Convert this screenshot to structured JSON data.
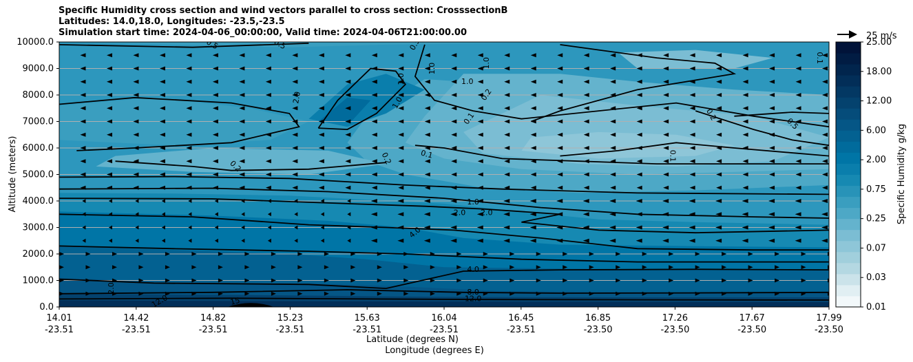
{
  "chart_data": {
    "type": "contour",
    "title_lines": [
      "Specific Humidity cross section and wind vectors parallel to cross section: CrosssectionB",
      "Latitudes: 14.0,18.0, Longitudes: -23.5,-23.5",
      "Simulation start time: 2024-04-06_00:00:00, Valid time: 2024-04-06T21:00:00.00"
    ],
    "xlabel_lat": "Latitude (degrees N)",
    "xlabel_lon": "Longitude (degrees E)",
    "ylabel": "Altitude (meters)",
    "ylim": [
      0,
      10000
    ],
    "yticks": [
      "0.0",
      "1000.0",
      "2000.0",
      "3000.0",
      "4000.0",
      "5000.0",
      "6000.0",
      "7000.0",
      "8000.0",
      "9000.0",
      "10000.0"
    ],
    "xticks_lat": [
      "14.01",
      "14.42",
      "14.82",
      "15.23",
      "15.63",
      "16.04",
      "16.45",
      "16.85",
      "17.26",
      "17.67",
      "17.99"
    ],
    "xticks_lon": [
      "-23.51",
      "-23.51",
      "-23.51",
      "-23.51",
      "-23.51",
      "-23.51",
      "-23.51",
      "-23.50",
      "-23.50",
      "-23.50",
      "-23.50"
    ],
    "colorbar": {
      "label": "Specific Humidity g/kg",
      "levels": [
        0.01,
        0.02,
        0.03,
        0.05,
        0.07,
        0.1,
        0.15,
        0.25,
        0.4,
        0.5,
        0.75,
        1.0,
        1.5,
        2.0,
        3.0,
        4.0,
        6.0,
        8.0,
        10.0,
        12.0,
        15.0,
        18.0,
        20.0,
        25.0
      ],
      "tick_labels": [
        "0.01",
        "0.03",
        "0.07",
        "0.25",
        "0.75",
        "2.00",
        "6.00",
        "12.00",
        "18.00",
        "25.00"
      ],
      "colors": [
        "#f2f8fa",
        "#e1eff3",
        "#cbe3ea",
        "#b4d8e2",
        "#a1cfdc",
        "#8ec6d8",
        "#7bbdd3",
        "#64b3cd",
        "#4da8c6",
        "#3a9ebf",
        "#2893b8",
        "#1689b2",
        "#0a7eac",
        "#0075a6",
        "#016b9c",
        "#036191",
        "#055686",
        "#054c7a",
        "#04426e",
        "#033863",
        "#022e58",
        "#01254d",
        "#011c43",
        "#011339"
      ]
    },
    "quiver_key": "25 m/s",
    "contour_labels": [
      {
        "text": "0.1",
        "lat": 17.94,
        "alt": 9400,
        "rot": 90
      },
      {
        "text": "0.2",
        "lat": 17.38,
        "alt": 7250,
        "rot": 60
      },
      {
        "text": "0.5",
        "lat": 17.8,
        "alt": 6900,
        "rot": 45
      },
      {
        "text": "0.1",
        "lat": 17.18,
        "alt": 5700,
        "rot": 90
      },
      {
        "text": "0.2",
        "lat": 16.22,
        "alt": 8000,
        "rot": -55
      },
      {
        "text": "0.1",
        "lat": 16.13,
        "alt": 7100,
        "rot": -55
      },
      {
        "text": "0.1",
        "lat": 15.91,
        "alt": 5750,
        "rot": 15
      },
      {
        "text": "0.2",
        "lat": 15.7,
        "alt": 5600,
        "rot": 65
      },
      {
        "text": "0.2",
        "lat": 14.92,
        "alt": 5300,
        "rot": 45
      },
      {
        "text": "1.0",
        "lat": 15.78,
        "alt": 8600,
        "rot": -90
      },
      {
        "text": "1.0",
        "lat": 15.94,
        "alt": 9000,
        "rot": -90
      },
      {
        "text": "1.0",
        "lat": 16.22,
        "alt": 9200,
        "rot": -90
      },
      {
        "text": "1.0",
        "lat": 16.12,
        "alt": 8500,
        "rot": 0
      },
      {
        "text": "1.0",
        "lat": 15.76,
        "alt": 7700,
        "rot": -60
      },
      {
        "text": "2.0",
        "lat": 15.24,
        "alt": 7900,
        "rot": -80
      },
      {
        "text": "0.5",
        "lat": 14.8,
        "alt": 9900,
        "rot": 30
      },
      {
        "text": "0.5",
        "lat": 15.15,
        "alt": 9900,
        "rot": 30
      },
      {
        "text": "0.5",
        "lat": 15.85,
        "alt": 9900,
        "rot": -60
      },
      {
        "text": "1.0",
        "lat": 16.15,
        "alt": 3950,
        "rot": 0
      },
      {
        "text": "2.0",
        "lat": 16.08,
        "alt": 3550,
        "rot": 0
      },
      {
        "text": "2.0",
        "lat": 16.22,
        "alt": 3550,
        "rot": 0
      },
      {
        "text": "4.0",
        "lat": 15.85,
        "alt": 2800,
        "rot": -40
      },
      {
        "text": "4.0",
        "lat": 16.15,
        "alt": 1400,
        "rot": 0
      },
      {
        "text": "8.0",
        "lat": 16.15,
        "alt": 550,
        "rot": 0
      },
      {
        "text": "12.0",
        "lat": 16.15,
        "alt": 300,
        "rot": 0
      },
      {
        "text": "2.0",
        "lat": 14.28,
        "alt": 700,
        "rot": -90
      },
      {
        "text": "12.0",
        "lat": 14.53,
        "alt": 200,
        "rot": -30
      },
      {
        "text": "15",
        "lat": 14.92,
        "alt": 200,
        "rot": -15
      }
    ]
  }
}
